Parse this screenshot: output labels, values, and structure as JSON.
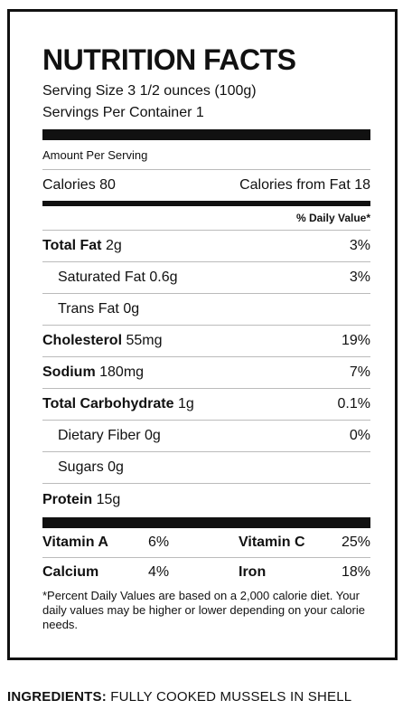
{
  "panel": {
    "title": "NUTRITION FACTS",
    "serving_size": "Serving Size 3 1/2 ounces (100g)",
    "servings_per_container": "Servings Per Container 1",
    "amount_per_serving": "Amount Per Serving",
    "calories": "Calories 80",
    "calories_from_fat": "Calories from Fat 18",
    "daily_value_header": "% Daily Value*",
    "nutrients": [
      {
        "name": "Total Fat",
        "amount": "2g",
        "dv": "3%"
      },
      {
        "name": "Saturated Fat",
        "amount": "0.6g",
        "dv": "3%"
      },
      {
        "name": "Trans Fat",
        "amount": "0g",
        "dv": ""
      },
      {
        "name": "Cholesterol",
        "amount": "55mg",
        "dv": "19%"
      },
      {
        "name": "Sodium",
        "amount": "180mg",
        "dv": "7%"
      },
      {
        "name": "Total Carbohydrate",
        "amount": "1g",
        "dv": "0.1%"
      },
      {
        "name": "Dietary Fiber",
        "amount": "0g",
        "dv": "0%"
      },
      {
        "name": "Sugars",
        "amount": "0g",
        "dv": ""
      },
      {
        "name": "Protein",
        "amount": "15g",
        "dv": ""
      }
    ],
    "vitamins": [
      {
        "name1": "Vitamin A",
        "val1": "6%",
        "name2": "Vitamin C",
        "val2": "25%"
      },
      {
        "name1": "Calcium",
        "val1": "4%",
        "name2": "Iron",
        "val2": "18%"
      }
    ],
    "footnote": "*Percent Daily Values are based on a 2,000 calorie diet. Your daily values may be higher or lower depending on your calorie needs."
  },
  "ingredients": {
    "label": "INGREDIENTS:",
    "text": "FULLY COOKED MUSSELS IN SHELL"
  }
}
